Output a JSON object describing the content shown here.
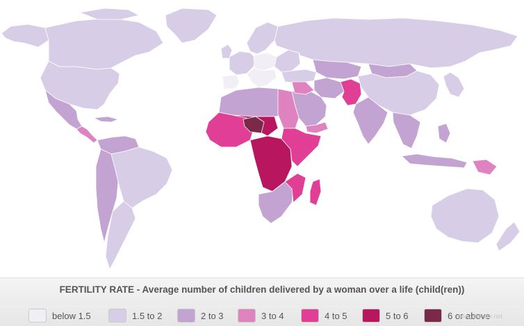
{
  "legend": {
    "title": "FERTILITY RATE - Average number of children delivered by a woman over a life (child(ren))",
    "items": [
      {
        "label": "below 1.5",
        "color": "#f1eef6"
      },
      {
        "label": "1.5 to 2",
        "color": "#d7cde6"
      },
      {
        "label": "2 to 3",
        "color": "#c3a3d1"
      },
      {
        "label": "3 to 4",
        "color": "#df83c0"
      },
      {
        "label": "4 to 5",
        "color": "#e03f95"
      },
      {
        "label": "5 to 6",
        "color": "#b8165e"
      },
      {
        "label": "6 or above",
        "color": "#7a2a48"
      }
    ]
  },
  "watermark": "www.chinabi.net"
}
